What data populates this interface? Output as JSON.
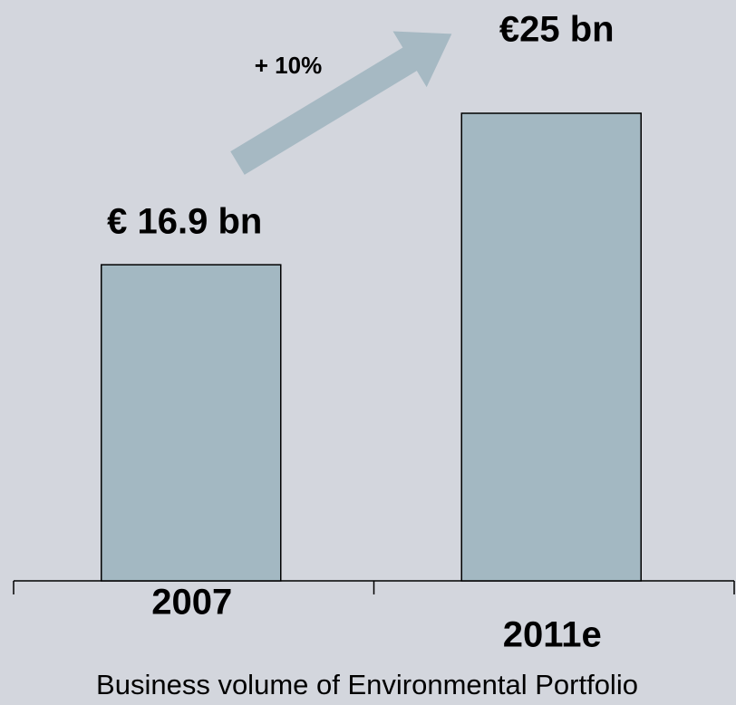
{
  "chart_data": {
    "type": "bar",
    "categories": [
      "2007",
      "2011e"
    ],
    "values": [
      16.9,
      25
    ],
    "value_labels": [
      "€ 16.9 bn",
      "€25 bn"
    ],
    "color": "#a3b8c2",
    "annotation": "+ 10%",
    "x_label": "Business volume of Environmental Portfolio"
  }
}
